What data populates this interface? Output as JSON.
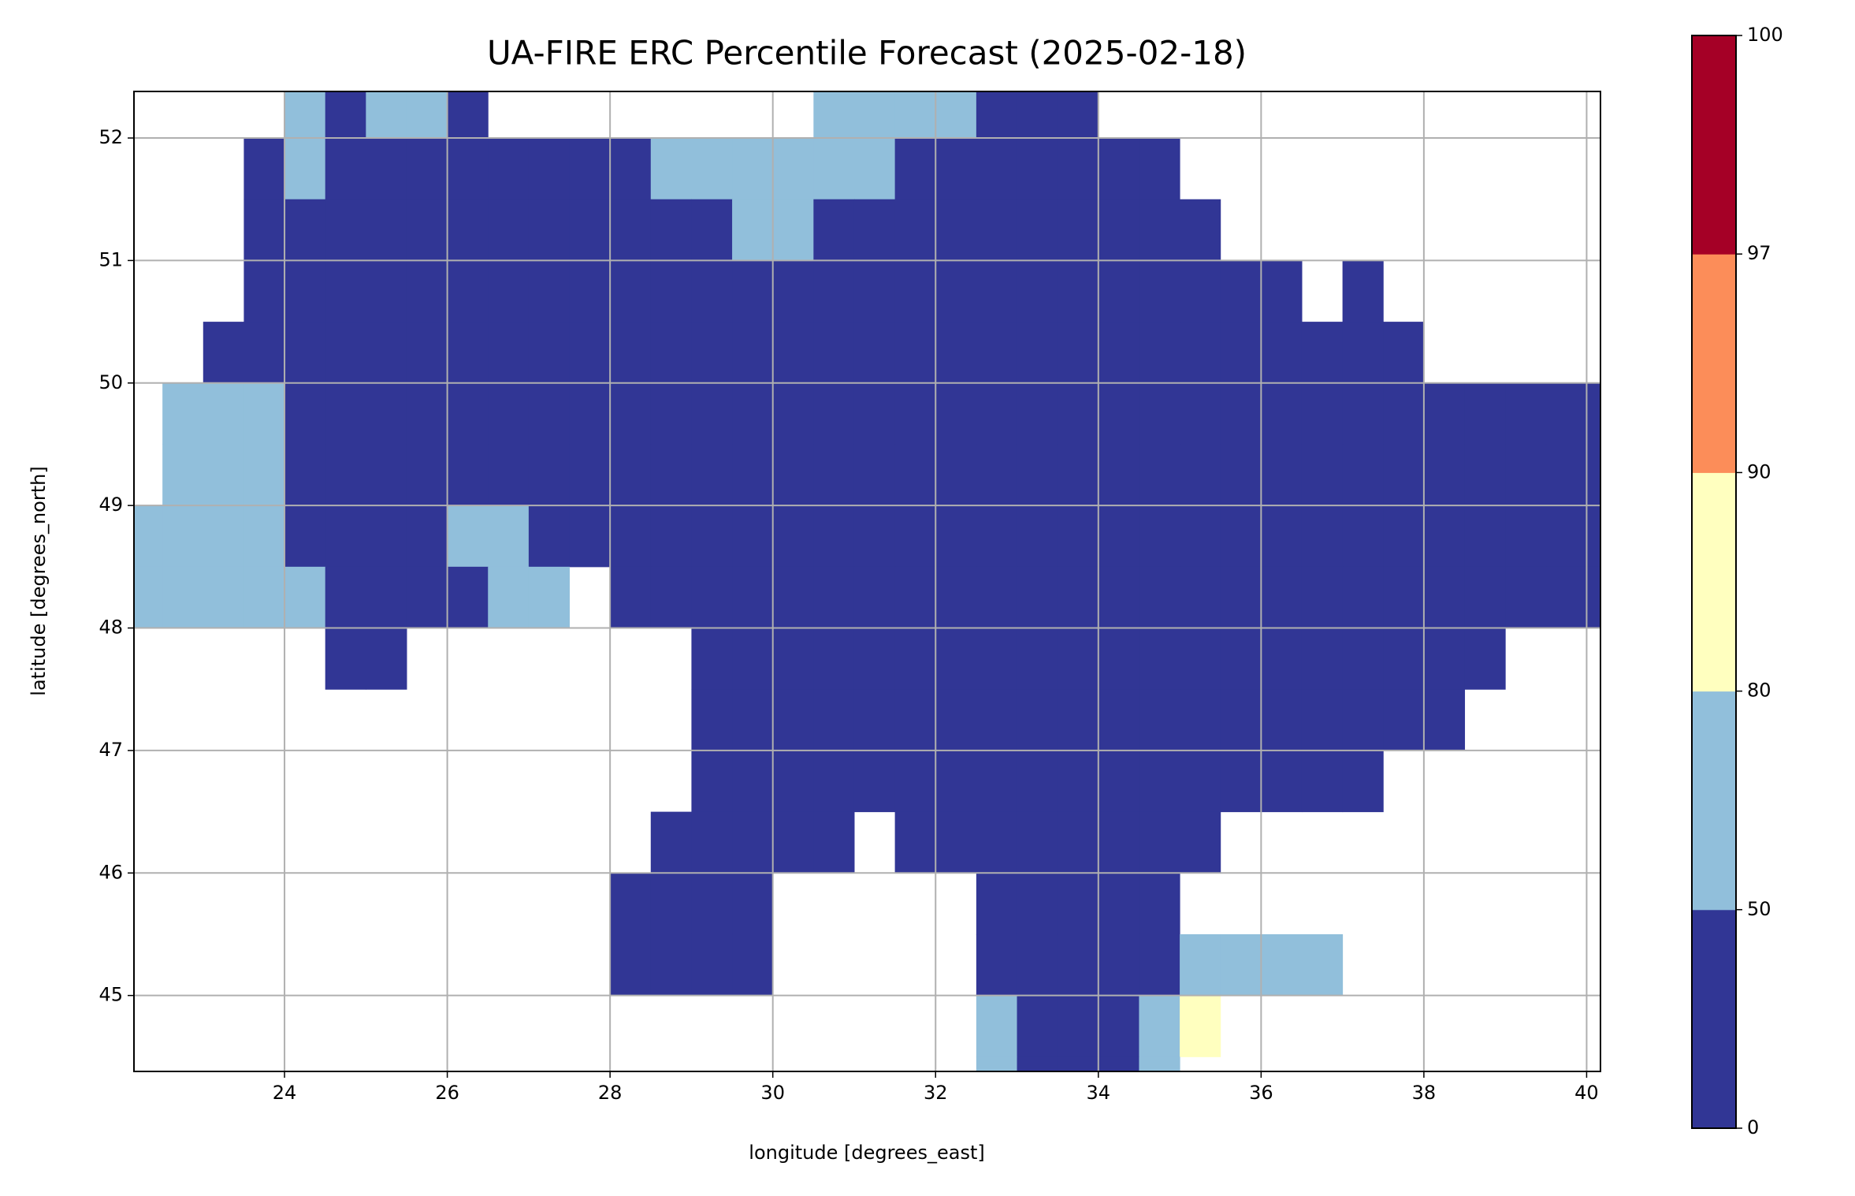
{
  "chart_data": {
    "type": "raster-map",
    "title": "UA-FIRE ERC Percentile Forecast (2025-02-18)",
    "x_label": "longitude [degrees_east]",
    "y_label": "latitude [degrees_north]",
    "xlim": [
      22.15,
      40.17
    ],
    "ylim": [
      44.38,
      52.38
    ],
    "xticks": [
      24,
      26,
      28,
      30,
      32,
      34,
      36,
      38,
      40
    ],
    "yticks": [
      45,
      46,
      47,
      48,
      49,
      50,
      51,
      52
    ],
    "grid": true,
    "x": [
      22.25,
      22.75,
      23.25,
      23.75,
      24.25,
      24.75,
      25.25,
      25.75,
      26.25,
      26.75,
      27.25,
      27.75,
      28.25,
      28.75,
      29.25,
      29.75,
      30.25,
      30.75,
      31.25,
      31.75,
      32.25,
      32.75,
      33.25,
      33.75,
      34.25,
      34.75,
      35.25,
      35.75,
      36.25,
      36.75,
      37.25,
      37.75,
      38.25,
      38.75,
      39.25,
      39.75,
      40.25
    ],
    "y": [
      52.25,
      51.75,
      51.25,
      50.75,
      50.25,
      49.75,
      49.25,
      48.75,
      48.25,
      47.75,
      47.25,
      46.75,
      46.25,
      45.75,
      45.25,
      44.75,
      44.25
    ],
    "values": [
      [
        null,
        null,
        null,
        null,
        65,
        25,
        65,
        65,
        25,
        null,
        null,
        null,
        null,
        null,
        null,
        null,
        null,
        65,
        65,
        65,
        65,
        25,
        25,
        25,
        null,
        null,
        null,
        null,
        null,
        null,
        null,
        null,
        null,
        null,
        null,
        null,
        null
      ],
      [
        null,
        null,
        null,
        25,
        65,
        25,
        25,
        25,
        25,
        25,
        25,
        25,
        25,
        65,
        65,
        65,
        65,
        65,
        65,
        25,
        25,
        25,
        25,
        25,
        25,
        25,
        null,
        null,
        null,
        null,
        null,
        null,
        null,
        null,
        null,
        null,
        null
      ],
      [
        null,
        null,
        null,
        25,
        25,
        25,
        25,
        25,
        25,
        25,
        25,
        25,
        25,
        25,
        25,
        65,
        65,
        25,
        25,
        25,
        25,
        25,
        25,
        25,
        25,
        25,
        25,
        null,
        null,
        null,
        null,
        null,
        null,
        null,
        null,
        null,
        null
      ],
      [
        null,
        null,
        null,
        25,
        25,
        25,
        25,
        25,
        25,
        25,
        25,
        25,
        25,
        25,
        25,
        25,
        25,
        25,
        25,
        25,
        25,
        25,
        25,
        25,
        25,
        25,
        25,
        25,
        25,
        null,
        25,
        null,
        null,
        null,
        null,
        null,
        null
      ],
      [
        null,
        null,
        25,
        25,
        25,
        25,
        25,
        25,
        25,
        25,
        25,
        25,
        25,
        25,
        25,
        25,
        25,
        25,
        25,
        25,
        25,
        25,
        25,
        25,
        25,
        25,
        25,
        25,
        25,
        25,
        25,
        25,
        null,
        null,
        null,
        null,
        null
      ],
      [
        null,
        65,
        65,
        65,
        25,
        25,
        25,
        25,
        25,
        25,
        25,
        25,
        25,
        25,
        25,
        25,
        25,
        25,
        25,
        25,
        25,
        25,
        25,
        25,
        25,
        25,
        25,
        25,
        25,
        25,
        25,
        25,
        25,
        25,
        25,
        25,
        25
      ],
      [
        null,
        65,
        65,
        65,
        25,
        25,
        25,
        25,
        25,
        25,
        25,
        25,
        25,
        25,
        25,
        25,
        25,
        25,
        25,
        25,
        25,
        25,
        25,
        25,
        25,
        25,
        25,
        25,
        25,
        25,
        25,
        25,
        25,
        25,
        25,
        25,
        25
      ],
      [
        65,
        65,
        65,
        65,
        25,
        25,
        25,
        25,
        65,
        65,
        25,
        25,
        25,
        25,
        25,
        25,
        25,
        25,
        25,
        25,
        25,
        25,
        25,
        25,
        25,
        25,
        25,
        25,
        25,
        25,
        25,
        25,
        25,
        25,
        25,
        25,
        25
      ],
      [
        65,
        65,
        65,
        65,
        65,
        25,
        25,
        25,
        25,
        65,
        65,
        null,
        25,
        25,
        25,
        25,
        25,
        25,
        25,
        25,
        25,
        25,
        25,
        25,
        25,
        25,
        25,
        25,
        25,
        25,
        25,
        25,
        25,
        25,
        25,
        25,
        25
      ],
      [
        null,
        null,
        null,
        null,
        null,
        25,
        25,
        null,
        null,
        null,
        null,
        null,
        null,
        null,
        25,
        25,
        25,
        25,
        25,
        25,
        25,
        25,
        25,
        25,
        25,
        25,
        25,
        25,
        25,
        25,
        25,
        25,
        25,
        25,
        null,
        null,
        null
      ],
      [
        null,
        null,
        null,
        null,
        null,
        null,
        null,
        null,
        null,
        null,
        null,
        null,
        null,
        null,
        25,
        25,
        25,
        25,
        25,
        25,
        25,
        25,
        25,
        25,
        25,
        25,
        25,
        25,
        25,
        25,
        25,
        25,
        25,
        null,
        null,
        null,
        null
      ],
      [
        null,
        null,
        null,
        null,
        null,
        null,
        null,
        null,
        null,
        null,
        null,
        null,
        null,
        null,
        25,
        25,
        25,
        25,
        25,
        25,
        25,
        25,
        25,
        25,
        25,
        25,
        25,
        25,
        25,
        25,
        25,
        null,
        null,
        null,
        null,
        null,
        null
      ],
      [
        null,
        null,
        null,
        null,
        null,
        null,
        null,
        null,
        null,
        null,
        null,
        null,
        null,
        25,
        25,
        25,
        25,
        25,
        null,
        25,
        25,
        25,
        25,
        25,
        25,
        25,
        25,
        null,
        null,
        null,
        null,
        null,
        null,
        null,
        null,
        null,
        null
      ],
      [
        null,
        null,
        null,
        null,
        null,
        null,
        null,
        null,
        null,
        null,
        null,
        null,
        25,
        25,
        25,
        25,
        null,
        null,
        null,
        null,
        null,
        25,
        25,
        25,
        25,
        25,
        null,
        null,
        null,
        null,
        null,
        null,
        null,
        null,
        null,
        null,
        null
      ],
      [
        null,
        null,
        null,
        null,
        null,
        null,
        null,
        null,
        null,
        null,
        null,
        null,
        25,
        25,
        25,
        25,
        null,
        null,
        null,
        null,
        null,
        25,
        25,
        25,
        25,
        25,
        65,
        65,
        65,
        65,
        null,
        null,
        null,
        null,
        null,
        null,
        null
      ],
      [
        null,
        null,
        null,
        null,
        null,
        null,
        null,
        null,
        null,
        null,
        null,
        null,
        null,
        null,
        null,
        null,
        null,
        null,
        null,
        null,
        null,
        65,
        25,
        25,
        25,
        65,
        85,
        null,
        null,
        null,
        null,
        null,
        null,
        null,
        null,
        null,
        null
      ],
      [
        null,
        null,
        null,
        null,
        null,
        null,
        null,
        null,
        null,
        null,
        null,
        null,
        null,
        null,
        null,
        null,
        null,
        null,
        null,
        null,
        null,
        65,
        25,
        25,
        25,
        65,
        null,
        null,
        null,
        null,
        null,
        null,
        null,
        null,
        null,
        null,
        null
      ]
    ],
    "colorbar": {
      "ticks": [
        0,
        50,
        80,
        90,
        97,
        100
      ],
      "colors": [
        "#313695",
        "#91bfdb",
        "#ffffbf",
        "#fc8d59",
        "#a50026"
      ]
    }
  }
}
